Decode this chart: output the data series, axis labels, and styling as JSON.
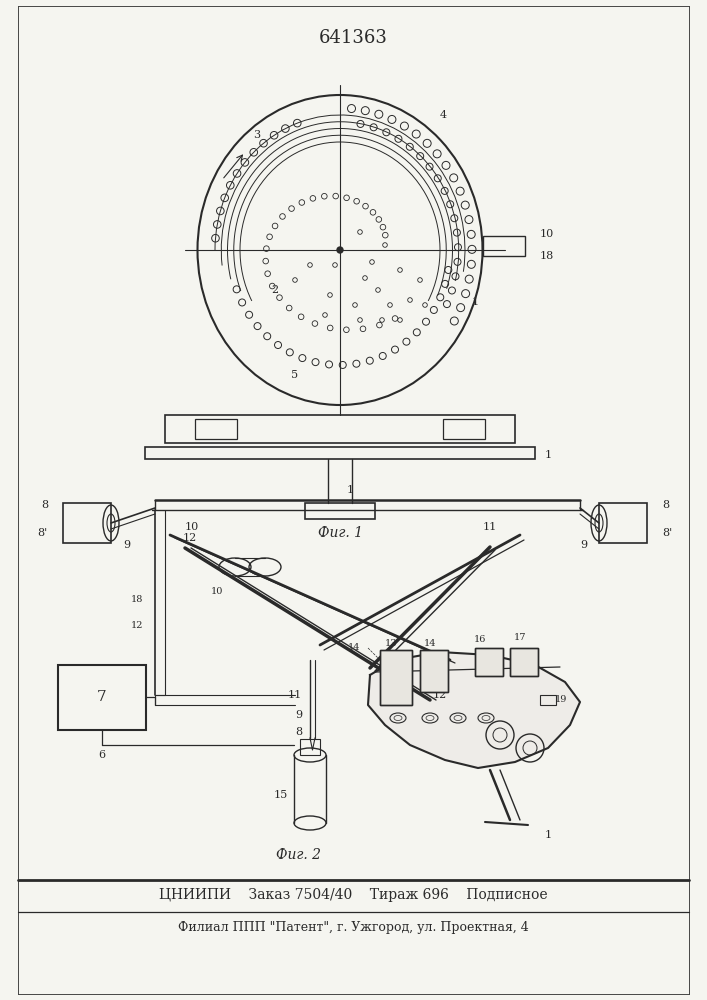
{
  "patent_number": "641363",
  "fig1_label": "Фиг. 1",
  "fig2_label": "Фиг. 2",
  "footer_line1": "ЦНИИПИ    Заказ 7504/40    Тираж 696    Подписное",
  "footer_line2": "Филиал ППП \"Патент\", г. Ужгород, ул. Проектная, 4",
  "bg_color": "#f5f5f0",
  "line_color": "#2a2a2a"
}
